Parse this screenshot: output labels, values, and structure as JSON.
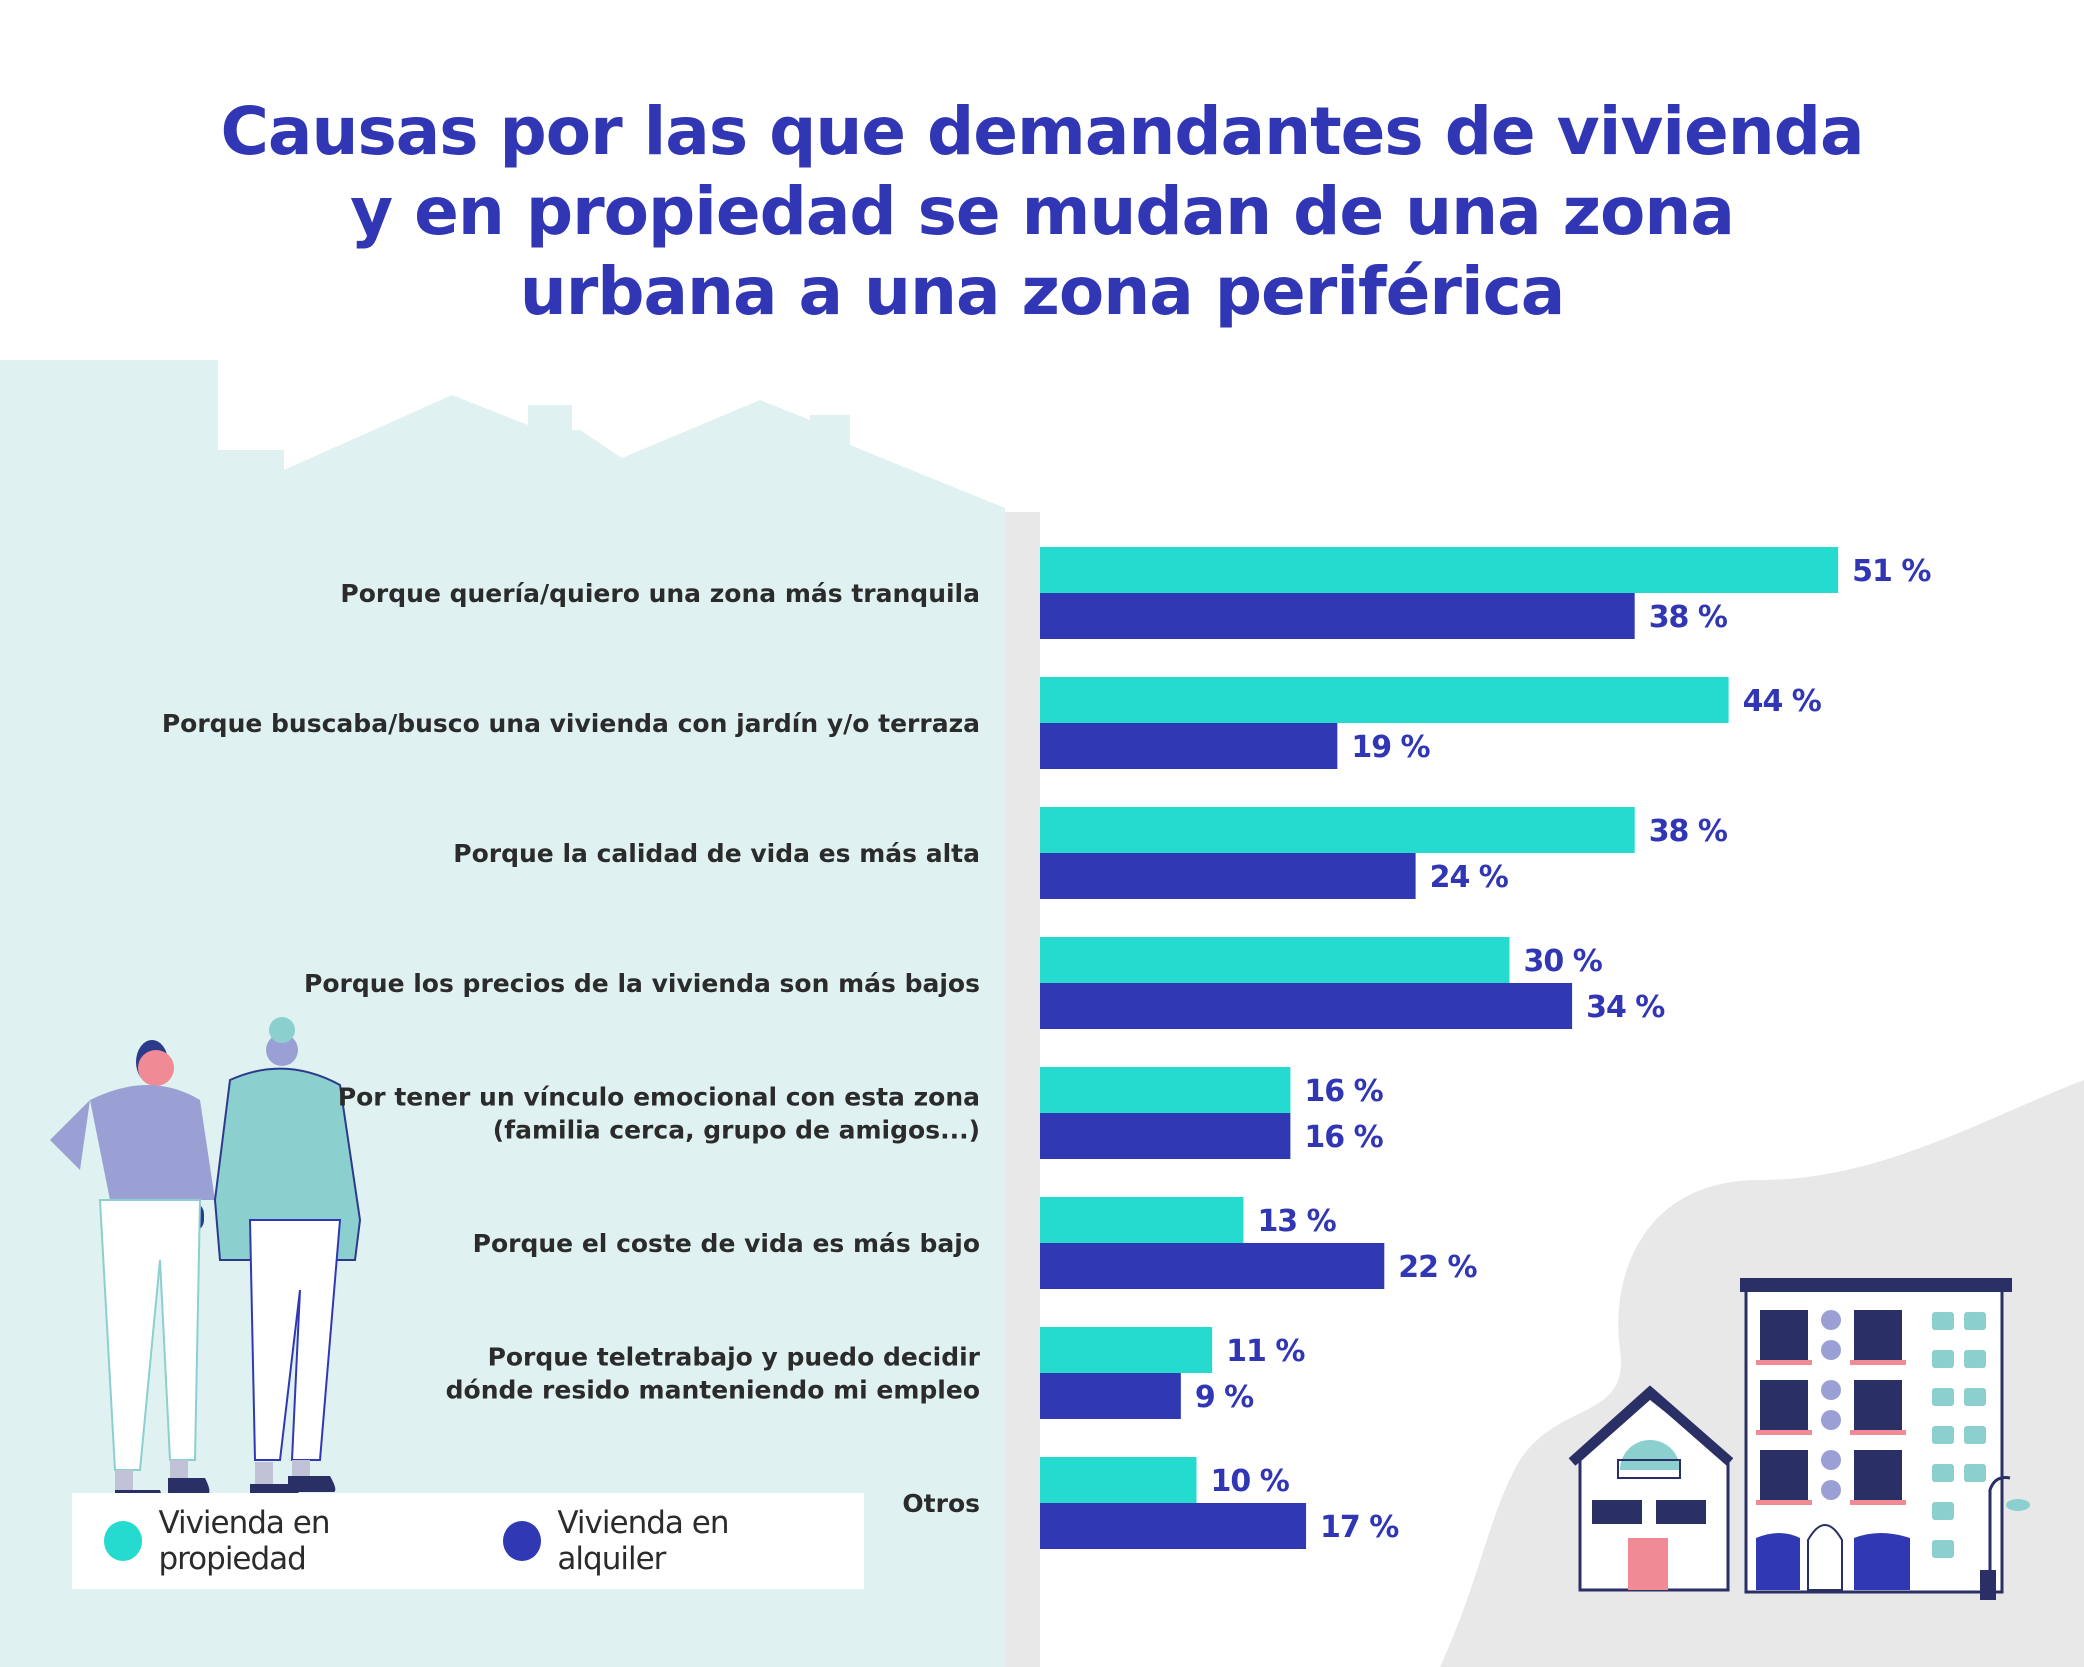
{
  "title_lines": [
    "Causas por las que demandantes de vivienda",
    "y en propiedad se mudan de una zona",
    "urbana a una zona periférica"
  ],
  "colors": {
    "propiedad": "#25dbcf",
    "alquiler": "#3039b3",
    "title": "#3036b4",
    "panel": "#dff2f1",
    "blob": "#e8e8e8"
  },
  "chart_data": {
    "type": "bar",
    "orientation": "horizontal",
    "title": "Causas por las que demandantes de vivienda y en propiedad se mudan de una zona urbana a una zona periférica",
    "categories": [
      [
        "Porque quería/quiero una zona más tranquila"
      ],
      [
        "Porque buscaba/busco una vivienda con jardín y/o terraza"
      ],
      [
        "Porque la calidad de vida es más alta"
      ],
      [
        "Porque los precios de la vivienda son más bajos"
      ],
      [
        "Por tener un vínculo emocional con esta zona",
        "(familia cerca, grupo de amigos...)"
      ],
      [
        "Porque el coste de vida es más bajo"
      ],
      [
        "Porque teletrabajo y puedo decidir",
        "dónde resido manteniendo mi empleo"
      ],
      [
        "Otros"
      ]
    ],
    "series": [
      {
        "name": "Vivienda en propiedad",
        "values": [
          51,
          44,
          38,
          30,
          16,
          13,
          11,
          10
        ]
      },
      {
        "name": "Vivienda en alquiler",
        "values": [
          38,
          19,
          24,
          34,
          16,
          22,
          9,
          17
        ]
      }
    ],
    "value_suffix": " %",
    "legend_position": "bottom-left",
    "grid": false
  },
  "legend": {
    "items": [
      "Vivienda en propiedad",
      "Vivienda en alquiler"
    ]
  }
}
